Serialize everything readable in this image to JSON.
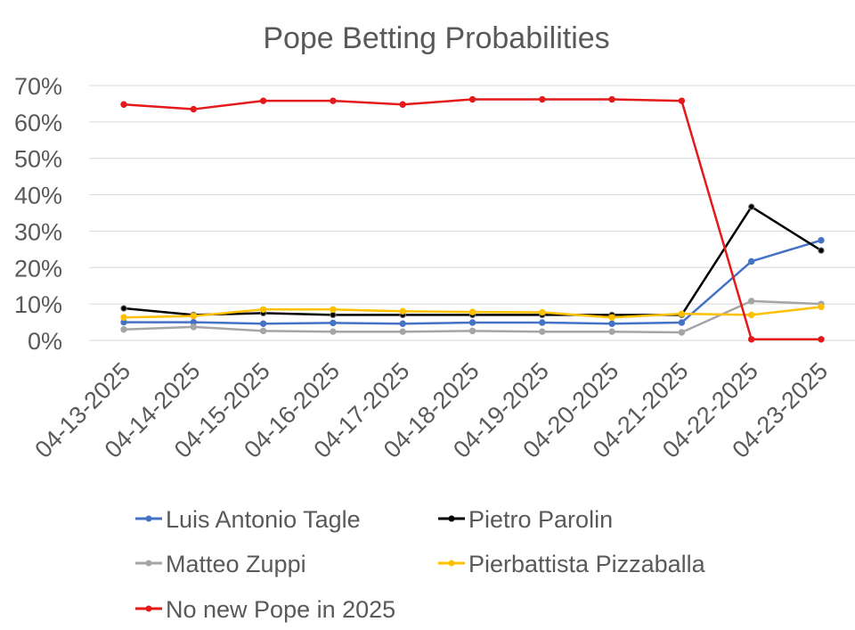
{
  "chart_data": {
    "type": "line",
    "title": "Pope Betting Probabilities",
    "xlabel": "",
    "ylabel": "",
    "categories": [
      "04-13-2025",
      "04-14-2025",
      "04-15-2025",
      "04-16-2025",
      "04-17-2025",
      "04-18-2025",
      "04-19-2025",
      "04-20-2025",
      "04-21-2025",
      "04-22-2025",
      "04-23-2025"
    ],
    "ylim": [
      0,
      0.7
    ],
    "yticks": [
      0,
      0.1,
      0.2,
      0.3,
      0.4,
      0.5,
      0.6,
      0.7
    ],
    "ytick_labels": [
      "0%",
      "10%",
      "20%",
      "30%",
      "40%",
      "50%",
      "60%",
      "70%"
    ],
    "grid": true,
    "legend_position": "bottom",
    "series": [
      {
        "name": "Luis Antonio Tagle",
        "color": "#4472c4",
        "values": [
          0.05,
          0.05,
          0.046,
          0.048,
          0.046,
          0.049,
          0.049,
          0.046,
          0.049,
          0.217,
          0.275
        ]
      },
      {
        "name": "Pietro Parolin",
        "color": "#000000",
        "values": [
          0.088,
          0.07,
          0.075,
          0.07,
          0.07,
          0.07,
          0.07,
          0.07,
          0.07,
          0.367,
          0.247
        ]
      },
      {
        "name": "Matteo Zuppi",
        "color": "#a5a5a5",
        "values": [
          0.03,
          0.037,
          0.026,
          0.024,
          0.024,
          0.026,
          0.024,
          0.024,
          0.022,
          0.108,
          0.1
        ]
      },
      {
        "name": "Pierbattista Pizzaballa",
        "color": "#ffc000",
        "values": [
          0.063,
          0.067,
          0.085,
          0.085,
          0.08,
          0.078,
          0.077,
          0.063,
          0.073,
          0.07,
          0.092
        ]
      },
      {
        "name": "No new Pope in 2025",
        "color": "#e41a1a",
        "values": [
          0.648,
          0.635,
          0.658,
          0.658,
          0.648,
          0.662,
          0.662,
          0.662,
          0.658,
          0.003,
          0.003
        ]
      }
    ]
  }
}
